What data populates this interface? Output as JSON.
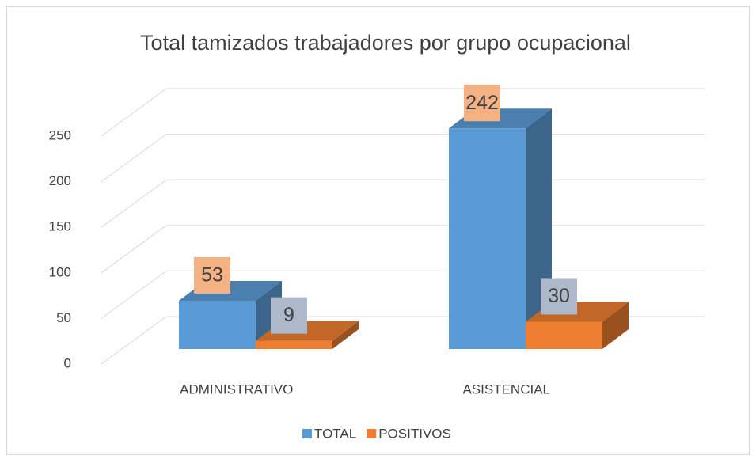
{
  "chart_data": {
    "type": "bar3d",
    "title": "Total tamizados trabajadores por grupo ocupacional",
    "categories": [
      "ADMINISTRATIVO",
      "ASISTENCIAL"
    ],
    "series": [
      {
        "name": "TOTAL",
        "color": "#5b9bd5",
        "values": [
          53,
          242
        ]
      },
      {
        "name": "POSITIVOS",
        "color": "#ed7d31",
        "values": [
          9,
          30
        ]
      }
    ],
    "ylim": [
      0,
      250
    ],
    "yticks": [
      0,
      50,
      100,
      150,
      200,
      250
    ],
    "grid": true,
    "legend": "bottom"
  }
}
